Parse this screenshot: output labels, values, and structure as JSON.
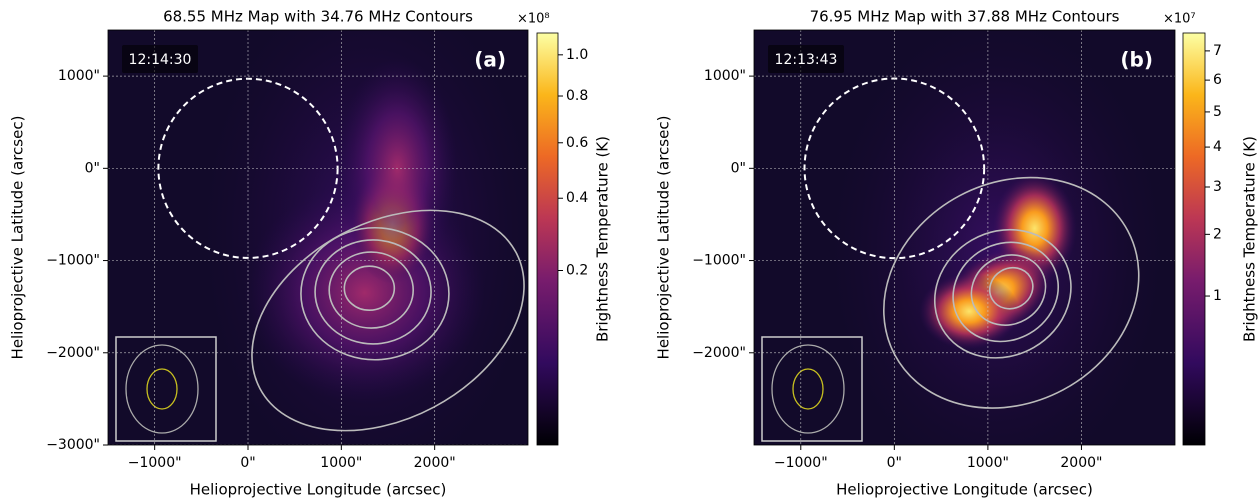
{
  "chart_data": [
    {
      "type": "heatmap",
      "title": "68.55 MHz Map with 34.76 MHz Contours",
      "x_label": "Helioprojective Longitude (arcsec)",
      "y_label": "Helioprojective Latitude (arcsec)",
      "timestamp": "12:14:30",
      "panel_label": "(a)",
      "xlim": [
        -1500,
        3000
      ],
      "ylim": [
        -3000,
        1500
      ],
      "xticks": [
        {
          "value": -1000,
          "label": "−1000\""
        },
        {
          "value": 0,
          "label": "0\""
        },
        {
          "value": 1000,
          "label": "1000\""
        },
        {
          "value": 2000,
          "label": "2000\""
        }
      ],
      "yticks": [
        {
          "value": 1000,
          "label": "1000\""
        },
        {
          "value": 0,
          "label": "0\""
        },
        {
          "value": -1000,
          "label": "−1000\""
        },
        {
          "value": -2000,
          "label": "−2000\""
        },
        {
          "value": -3000,
          "label": "−3000\""
        }
      ],
      "grid": true,
      "colorbar": {
        "label": "Brightness Temperature (K)",
        "scale": "sqrt",
        "lim": [
          0,
          1.115
        ],
        "ticks": [
          0.2,
          0.4,
          0.6,
          0.8,
          {
            "value": 1,
            "label": "1.0"
          }
        ],
        "multiplier": "×10⁸"
      }
    },
    {
      "type": "heatmap",
      "title": "76.95 MHz Map with 37.88 MHz Contours",
      "x_label": "Helioprojective Longitude (arcsec)",
      "y_label": "Helioprojective Latitude (arcsec)",
      "timestamp": "12:13:43",
      "panel_label": "(b)",
      "xlim": [
        -1500,
        3000
      ],
      "ylim": [
        -3000,
        1500
      ],
      "xticks": [
        {
          "value": -1000,
          "label": "−1000\""
        },
        {
          "value": 0,
          "label": "0\""
        },
        {
          "value": 1000,
          "label": "1000\""
        },
        {
          "value": 2000,
          "label": "2000\""
        }
      ],
      "yticks": [
        {
          "value": 1000,
          "label": "1000\""
        },
        {
          "value": 0,
          "label": "0\""
        },
        {
          "value": -1000,
          "label": "−1000\""
        },
        {
          "value": -2000,
          "label": "−2000\""
        }
      ],
      "grid": true,
      "colorbar": {
        "label": "Brightness Temperature (K)",
        "scale": "sqrt",
        "lim": [
          0,
          7.65
        ],
        "ticks": [
          1,
          2,
          3,
          4,
          5,
          6,
          7
        ],
        "multiplier": "×10⁷"
      }
    }
  ]
}
